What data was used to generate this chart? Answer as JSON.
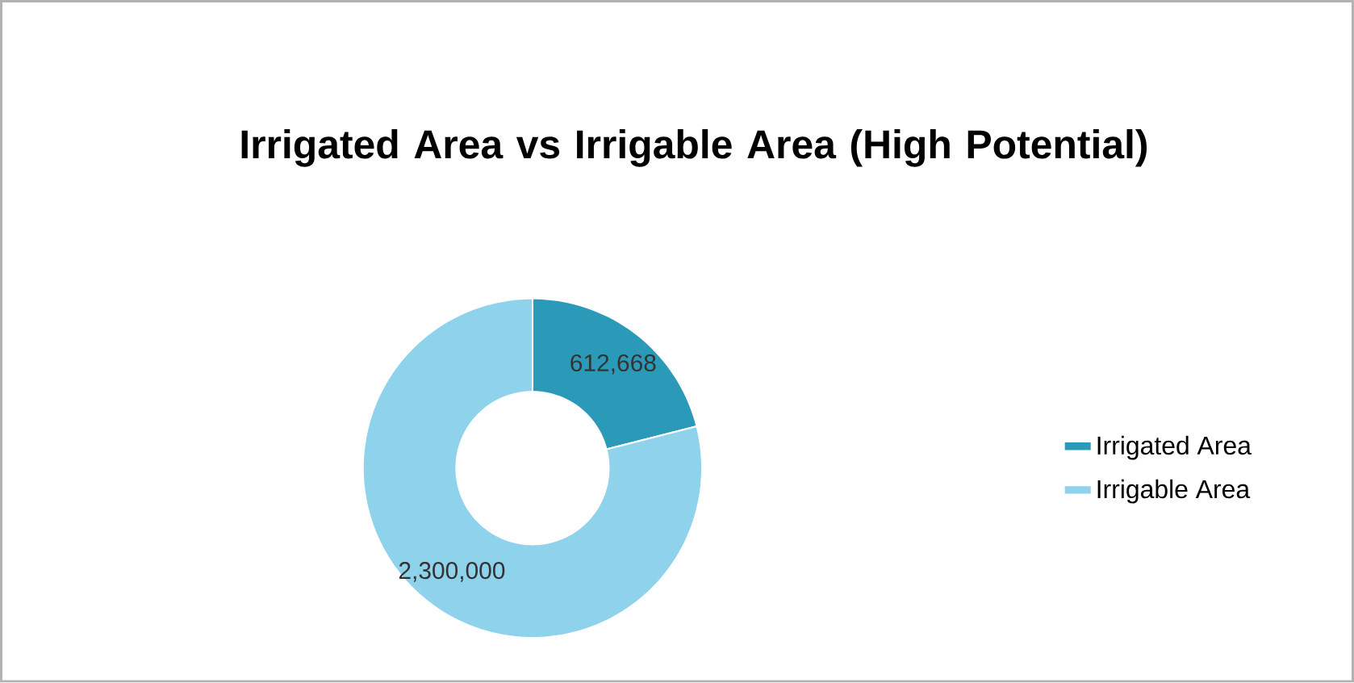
{
  "chart_data": {
    "type": "donut",
    "title": "Irrigated Area vs Irrigable Area (High Potential)",
    "categories": [
      "Irrigated Area",
      "Irrigable Area"
    ],
    "values": [
      612668,
      2300000
    ],
    "colors": [
      "#2b9ab8",
      "#8fd2ec"
    ],
    "value_labels": [
      "612,668",
      "2,300,000"
    ],
    "legend": "right"
  }
}
